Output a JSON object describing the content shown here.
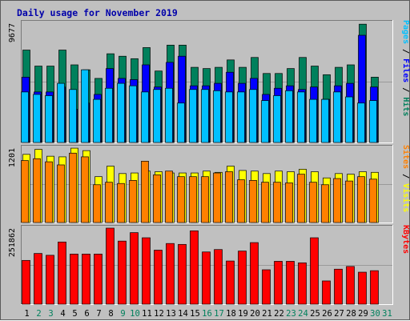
{
  "title": "Daily usage for November 2019",
  "colors": {
    "background": "#c0c0c0",
    "hits": "#00805c",
    "files": "#0000ff",
    "pages": "#00c0ff",
    "visits": "#ffff00",
    "sites": "#ff8000",
    "kbytes": "#ff0000",
    "weekday_label": "#000000",
    "weekend_label": "#00805c"
  },
  "chart_data": [
    {
      "type": "bar",
      "panel": "top",
      "max_label": "9677",
      "ylim": [
        0,
        9677
      ],
      "side_labels": [
        {
          "text": "Pages",
          "color": "#00c0ff"
        },
        {
          "text": " / ",
          "color": "#000000"
        },
        {
          "text": "Files",
          "color": "#0000ff"
        },
        {
          "text": " / ",
          "color": "#000000"
        },
        {
          "text": "Hits",
          "color": "#00805c"
        }
      ],
      "categories": [
        "1",
        "2",
        "3",
        "4",
        "5",
        "6",
        "7",
        "8",
        "9",
        "10",
        "11",
        "12",
        "13",
        "14",
        "15",
        "16",
        "17",
        "18",
        "19",
        "20",
        "21",
        "22",
        "23",
        "24",
        "25",
        "26",
        "27",
        "28",
        "29",
        "30",
        "31"
      ],
      "series": [
        {
          "name": "Hits",
          "color": "#00805c",
          "values": [
            7500,
            6200,
            6200,
            7500,
            6300,
            5900,
            5200,
            7200,
            7000,
            6800,
            7700,
            5800,
            7900,
            7900,
            6100,
            6000,
            6100,
            6700,
            6100,
            6900,
            5600,
            5600,
            6000,
            6900,
            6200,
            5500,
            6100,
            6300,
            9600,
            5300,
            0
          ]
        },
        {
          "name": "Files",
          "color": "#0000ff",
          "values": [
            5300,
            4100,
            4100,
            4500,
            2700,
            3200,
            3900,
            6000,
            5200,
            5100,
            6300,
            4500,
            6500,
            7000,
            4600,
            4600,
            4800,
            5700,
            4800,
            5200,
            3900,
            4400,
            4600,
            4300,
            4500,
            3500,
            4600,
            4800,
            8700,
            4500,
            0
          ]
        },
        {
          "name": "Pages",
          "color": "#00c0ff",
          "values": [
            4100,
            3900,
            3800,
            4800,
            4300,
            5900,
            3500,
            4400,
            4800,
            4600,
            4100,
            4300,
            4400,
            3200,
            4300,
            4300,
            4200,
            4100,
            4100,
            4300,
            3400,
            3800,
            4200,
            4100,
            3500,
            3500,
            4100,
            3700,
            3200,
            3400,
            0
          ]
        }
      ]
    },
    {
      "type": "bar",
      "panel": "middle",
      "max_label": "1201",
      "ylim": [
        0,
        1201
      ],
      "side_labels": [
        {
          "text": "Sites",
          "color": "#ff8000"
        },
        {
          "text": " / ",
          "color": "#000000"
        },
        {
          "text": "Visits",
          "color": "#ffff00"
        }
      ],
      "categories": [
        "1",
        "2",
        "3",
        "4",
        "5",
        "6",
        "7",
        "8",
        "9",
        "10",
        "11",
        "12",
        "13",
        "14",
        "15",
        "16",
        "17",
        "18",
        "19",
        "20",
        "21",
        "22",
        "23",
        "24",
        "25",
        "26",
        "27",
        "28",
        "29",
        "30",
        "31"
      ],
      "series": [
        {
          "name": "Visits",
          "color": "#ffff00",
          "values": [
            1100,
            1180,
            1070,
            1060,
            1200,
            1160,
            740,
            910,
            790,
            800,
            830,
            820,
            800,
            800,
            800,
            830,
            810,
            910,
            840,
            830,
            790,
            830,
            820,
            860,
            820,
            720,
            790,
            780,
            820,
            810,
            0
          ]
        },
        {
          "name": "Sites",
          "color": "#ff8000",
          "values": [
            1000,
            1030,
            980,
            930,
            1120,
            1060,
            610,
            650,
            630,
            680,
            990,
            770,
            830,
            740,
            740,
            740,
            800,
            820,
            690,
            680,
            650,
            650,
            640,
            780,
            650,
            610,
            710,
            670,
            740,
            700,
            0
          ]
        }
      ]
    },
    {
      "type": "bar",
      "panel": "bottom",
      "max_label": "251862",
      "ylim": [
        0,
        251862
      ],
      "side_labels": [
        {
          "text": "KBytes",
          "color": "#ff0000"
        }
      ],
      "categories": [
        "1",
        "2",
        "3",
        "4",
        "5",
        "6",
        "7",
        "8",
        "9",
        "10",
        "11",
        "12",
        "13",
        "14",
        "15",
        "16",
        "17",
        "18",
        "19",
        "20",
        "21",
        "22",
        "23",
        "24",
        "25",
        "26",
        "27",
        "28",
        "29",
        "30",
        "31"
      ],
      "series": [
        {
          "name": "KBytes",
          "color": "#ff0000",
          "values": [
            145000,
            168000,
            162000,
            206000,
            166000,
            166000,
            166000,
            251862,
            209000,
            237000,
            220000,
            179000,
            201000,
            198000,
            243000,
            173000,
            181000,
            143000,
            176000,
            204000,
            114000,
            142000,
            142000,
            137000,
            220000,
            77000,
            116000,
            125000,
            106000,
            111000,
            0
          ]
        }
      ]
    }
  ],
  "x_axis": {
    "days": [
      "1",
      "2",
      "3",
      "4",
      "5",
      "6",
      "7",
      "8",
      "9",
      "10",
      "11",
      "12",
      "13",
      "14",
      "15",
      "16",
      "17",
      "18",
      "19",
      "20",
      "21",
      "22",
      "23",
      "24",
      "25",
      "26",
      "27",
      "28",
      "29",
      "30",
      "31"
    ],
    "weekend": [
      false,
      true,
      true,
      false,
      false,
      false,
      false,
      false,
      true,
      true,
      false,
      false,
      false,
      false,
      false,
      true,
      true,
      false,
      false,
      false,
      false,
      false,
      true,
      true,
      false,
      false,
      false,
      false,
      false,
      true,
      true
    ]
  }
}
